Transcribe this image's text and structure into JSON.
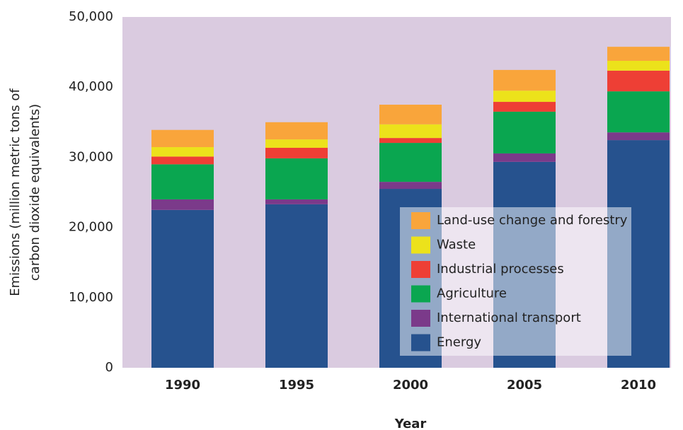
{
  "chart_data": {
    "type": "bar",
    "stacked": true,
    "xlabel": "Year",
    "ylabel": [
      "Emissions (million metric tons of",
      "carbon dioxide equivalents)"
    ],
    "categories": [
      "1990",
      "1995",
      "2000",
      "2005",
      "2010"
    ],
    "series": [
      {
        "name": "Energy",
        "color": "#26528e",
        "values": [
          22500,
          23300,
          25500,
          29350,
          32450
        ]
      },
      {
        "name": "International transport",
        "color": "#7b3a8a",
        "values": [
          1500,
          700,
          1000,
          1200,
          1100
        ]
      },
      {
        "name": "Agriculture",
        "color": "#0aa650",
        "values": [
          5000,
          5850,
          5550,
          5950,
          5850
        ]
      },
      {
        "name": "Industrial processes",
        "color": "#ee3f35",
        "values": [
          1100,
          1500,
          700,
          1400,
          2950
        ]
      },
      {
        "name": "Waste",
        "color": "#ece21b",
        "values": [
          1350,
          1200,
          1950,
          1600,
          1400
        ]
      },
      {
        "name": "Land-use change and forestry",
        "color": "#f9a53b",
        "values": [
          2450,
          2450,
          2800,
          2950,
          2000
        ]
      }
    ],
    "ylim": [
      0,
      50000
    ],
    "yticks": [
      0,
      {
        "value": 10000,
        "label": "10,000"
      },
      {
        "value": 20000,
        "label": "20,000"
      },
      {
        "value": 30000,
        "label": "30,000"
      },
      {
        "value": 40000,
        "label": "40,000"
      },
      {
        "value": 50000,
        "label": "50,000"
      }
    ],
    "plot_background": "#dacbe0",
    "legend": "lower right"
  }
}
